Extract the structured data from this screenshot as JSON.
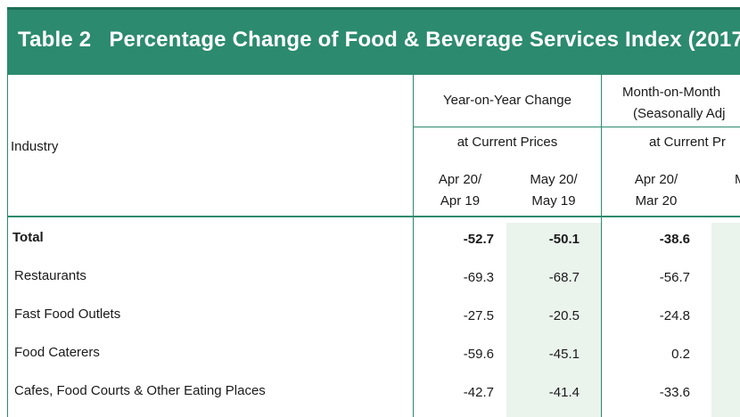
{
  "title": {
    "number": "Table 2",
    "text": "Percentage Change of Food & Beverage Services Index (2017"
  },
  "header": {
    "industry": "Industry",
    "yoy": {
      "title": "Year-on-Year Change",
      "subtitle": "at Current Prices",
      "col1_line1": "Apr 20/",
      "col1_line2": "Apr 19",
      "col2_line1": "May 20/",
      "col2_line2": "May 19"
    },
    "mom": {
      "title_line1": "Month-on-Month",
      "title_line2": "(Seasonally Adj",
      "subtitle": "at Current Pr",
      "col1_line1": "Apr 20/",
      "col1_line2": "Mar 20",
      "col2_partial": "M"
    }
  },
  "rows": [
    {
      "industry": "Total",
      "yoy_apr": "-52.7",
      "yoy_may": "-50.1",
      "mom_apr": "-38.6"
    },
    {
      "industry": "Restaurants",
      "yoy_apr": "-69.3",
      "yoy_may": "-68.7",
      "mom_apr": "-56.7"
    },
    {
      "industry": "Fast Food Outlets",
      "yoy_apr": "-27.5",
      "yoy_may": "-20.5",
      "mom_apr": "-24.8"
    },
    {
      "industry": "Food Caterers",
      "yoy_apr": "-59.6",
      "yoy_may": "-45.1",
      "mom_apr": "0.2"
    },
    {
      "industry": "Cafes, Food Courts & Other Eating Places",
      "yoy_apr": "-42.7",
      "yoy_may": "-41.4",
      "mom_apr": "-33.6"
    }
  ],
  "colors": {
    "title_bg": "#2c8a6e",
    "title_text": "#ffffff",
    "rule": "#2c8a6e",
    "column_shade": "#eaf3ec"
  }
}
